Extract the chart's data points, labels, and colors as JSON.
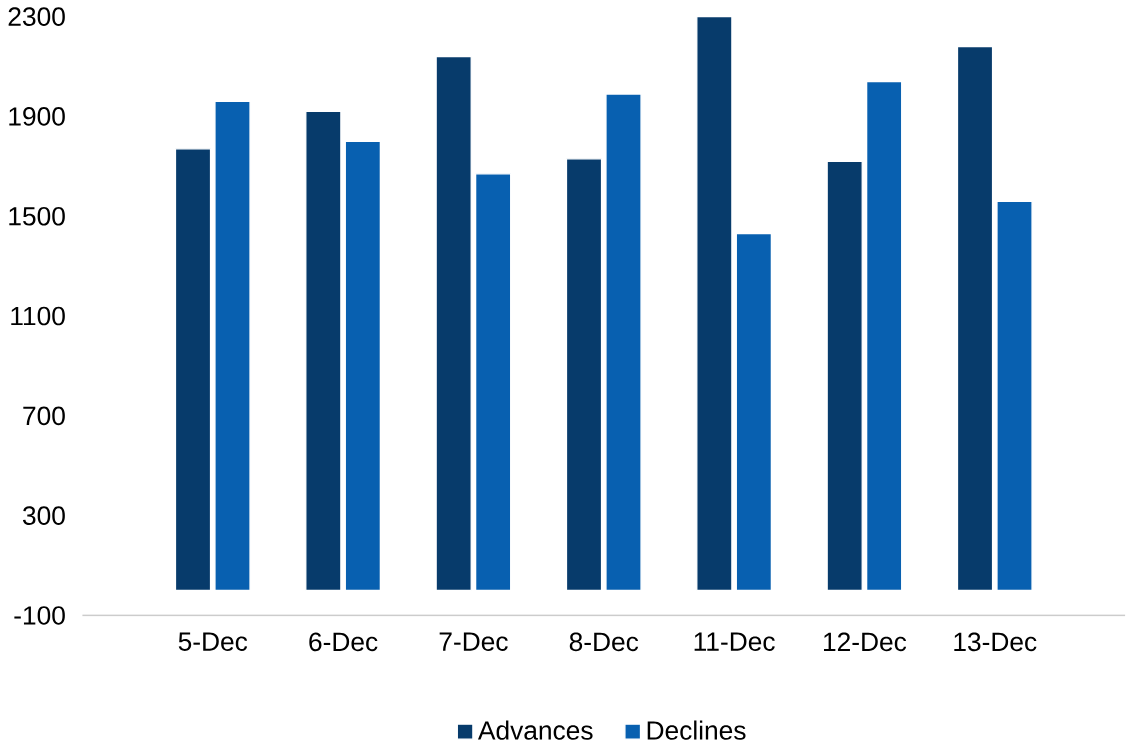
{
  "chart_data": {
    "type": "bar",
    "categories": [
      "5-Dec",
      "6-Dec",
      "7-Dec",
      "8-Dec",
      "11-Dec",
      "12-Dec",
      "13-Dec"
    ],
    "series": [
      {
        "name": "Advances",
        "color": "#073b6b",
        "values": [
          1770,
          1920,
          2140,
          1730,
          2300,
          1720,
          2180
        ]
      },
      {
        "name": "Declines",
        "color": "#0860b0",
        "values": [
          1960,
          1800,
          1670,
          1990,
          1430,
          2040,
          1560
        ]
      }
    ],
    "ylim": [
      -100,
      2300
    ],
    "yticks": [
      -100,
      300,
      700,
      1100,
      1500,
      1900,
      2300
    ],
    "grid": false,
    "legend": "bottom"
  }
}
